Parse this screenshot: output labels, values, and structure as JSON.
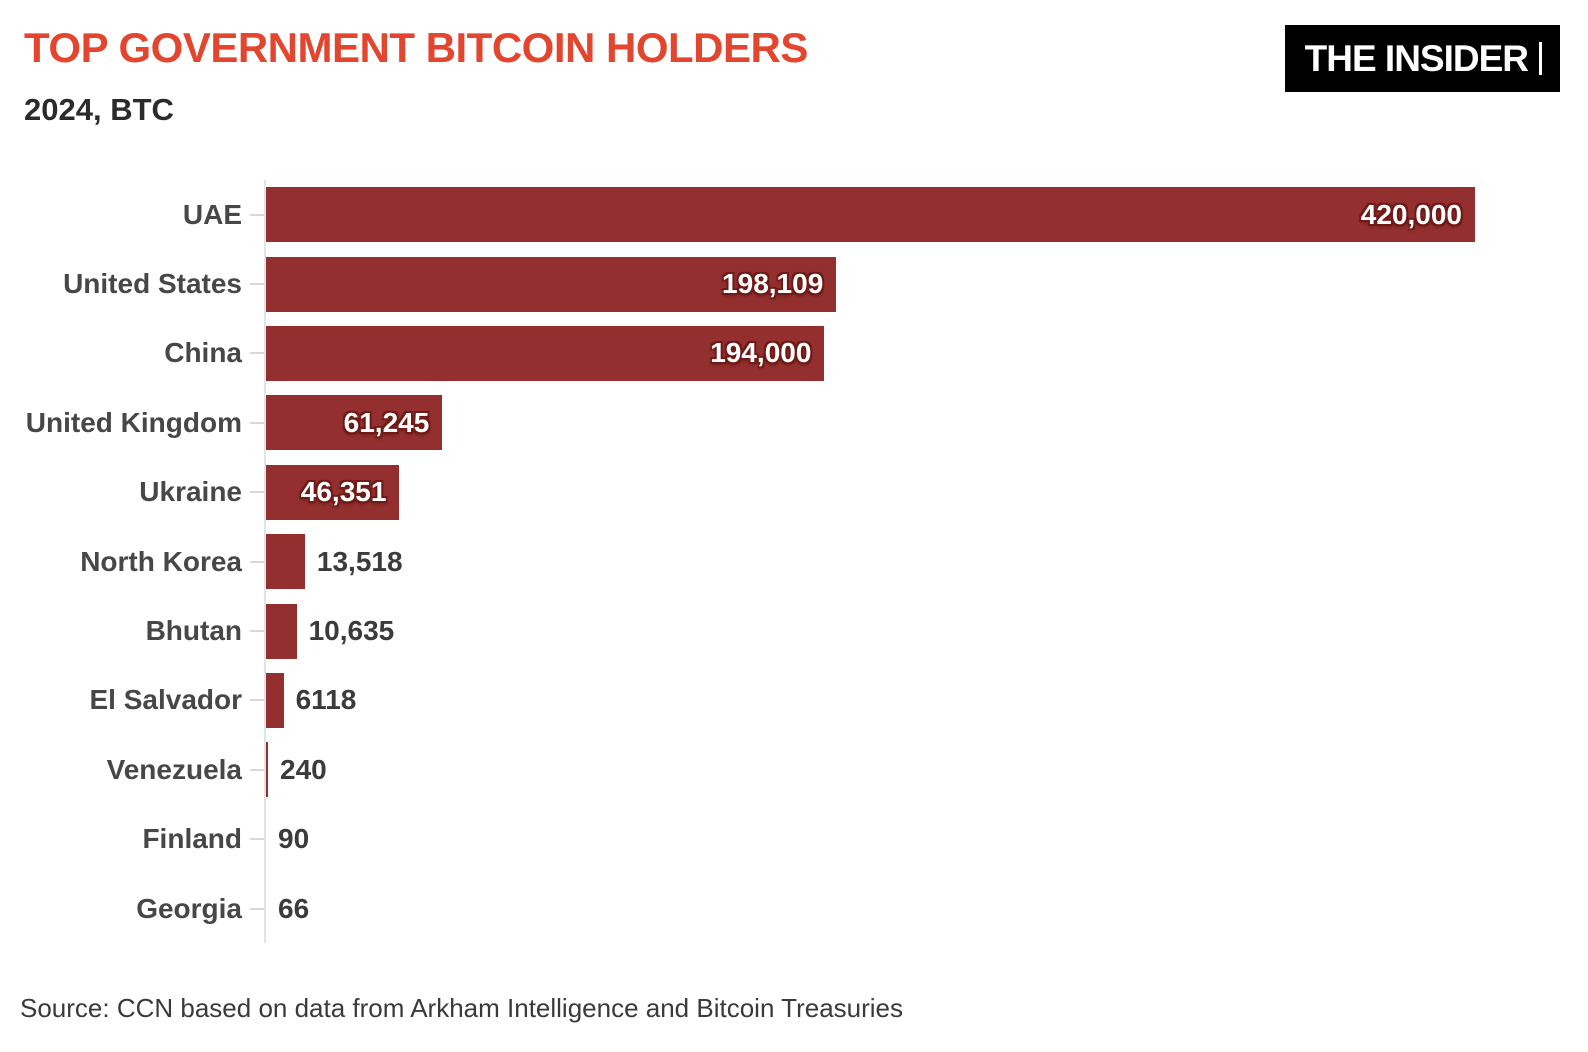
{
  "header": {
    "title": "TOP GOVERNMENT BITCOIN HOLDERS",
    "subtitle": "2024, BTC"
  },
  "logo": {
    "text": "THE INSIDER",
    "bg_color": "#000000",
    "text_color": "#ffffff"
  },
  "source": {
    "text": "Source: CCN based on data from Arkham Intelligence and Bitcoin Treasuries"
  },
  "colors": {
    "title": "#e2462f",
    "subtitle": "#2b2b2b",
    "bar": "#93302f",
    "category_label": "#474747",
    "value_outside": "#3b3b3b",
    "value_inside": "#ffffff",
    "value_inside_outline": "#6e1b18",
    "axis_line": "#e3e3e3",
    "tick": "#d8d8d8",
    "background": "#ffffff"
  },
  "chart_data": {
    "type": "bar",
    "orientation": "horizontal",
    "title": "TOP GOVERNMENT BITCOIN HOLDERS",
    "subtitle": "2024, BTC",
    "unit": "BTC",
    "year": "2024",
    "categories": [
      "UAE",
      "United States",
      "China",
      "United Kingdom",
      "Ukraine",
      "North Korea",
      "Bhutan",
      "El Salvador",
      "Venezuela",
      "Finland",
      "Georgia"
    ],
    "values": [
      420000,
      198109,
      194000,
      61245,
      46351,
      13518,
      10635,
      6118,
      240,
      90,
      66
    ],
    "value_labels": [
      "420,000",
      "198,109",
      "194,000",
      "61,245",
      "46,351",
      "13,518",
      "10,635",
      "6118",
      "240",
      "90",
      "66"
    ],
    "xlim": [
      0,
      420000
    ],
    "grid": false,
    "legend": "none",
    "bar_color": "#93302f"
  }
}
